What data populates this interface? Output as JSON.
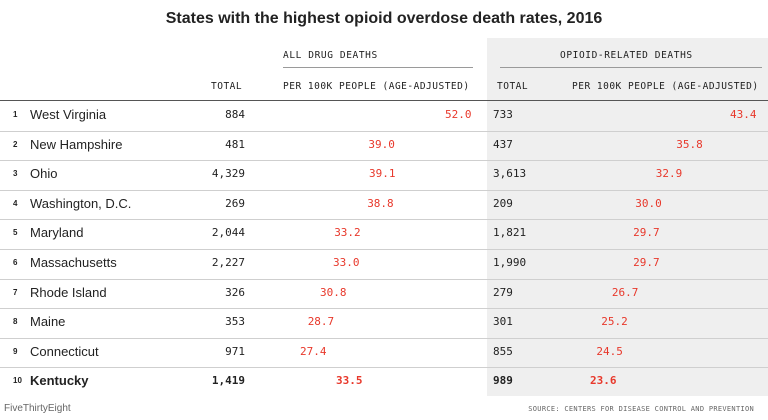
{
  "title": "States with the highest opioid overdose death rates, 2016",
  "groups": {
    "all": "ALL DRUG DEATHS",
    "opioid": "OPIOID-RELATED DEATHS"
  },
  "columns": {
    "total": "TOTAL",
    "rate": "PER 100K PEOPLE (AGE-ADJUSTED)",
    "total2": "TOTAL",
    "rate2": "PER 100K PEOPLE (AGE-ADJUSTED)"
  },
  "rows": [
    {
      "rank": "1",
      "state": "West Virginia",
      "all_total": "884",
      "all_rate": "52.0",
      "op_total": "733",
      "op_rate": "43.4"
    },
    {
      "rank": "2",
      "state": "New Hampshire",
      "all_total": "481",
      "all_rate": "39.0",
      "op_total": "437",
      "op_rate": "35.8"
    },
    {
      "rank": "3",
      "state": "Ohio",
      "all_total": "4,329",
      "all_rate": "39.1",
      "op_total": "3,613",
      "op_rate": "32.9"
    },
    {
      "rank": "4",
      "state": "Washington, D.C.",
      "all_total": "269",
      "all_rate": "38.8",
      "op_total": "209",
      "op_rate": "30.0"
    },
    {
      "rank": "5",
      "state": "Maryland",
      "all_total": "2,044",
      "all_rate": "33.2",
      "op_total": "1,821",
      "op_rate": "29.7"
    },
    {
      "rank": "6",
      "state": "Massachusetts",
      "all_total": "2,227",
      "all_rate": "33.0",
      "op_total": "1,990",
      "op_rate": "29.7"
    },
    {
      "rank": "7",
      "state": "Rhode Island",
      "all_total": "326",
      "all_rate": "30.8",
      "op_total": "279",
      "op_rate": "26.7"
    },
    {
      "rank": "8",
      "state": "Maine",
      "all_total": "353",
      "all_rate": "28.7",
      "op_total": "301",
      "op_rate": "25.2"
    },
    {
      "rank": "9",
      "state": "Connecticut",
      "all_total": "971",
      "all_rate": "27.4",
      "op_total": "855",
      "op_rate": "24.5"
    },
    {
      "rank": "10",
      "state": "Kentucky",
      "all_total": "1,419",
      "all_rate": "33.5",
      "op_total": "989",
      "op_rate": "23.6"
    }
  ],
  "footer": {
    "brand": "FiveThirtyEight",
    "source": "SOURCE: CENTERS FOR DISEASE CONTROL AND PREVENTION"
  },
  "colors": {
    "rate": "#e8382b",
    "shade": "#efefef"
  }
}
